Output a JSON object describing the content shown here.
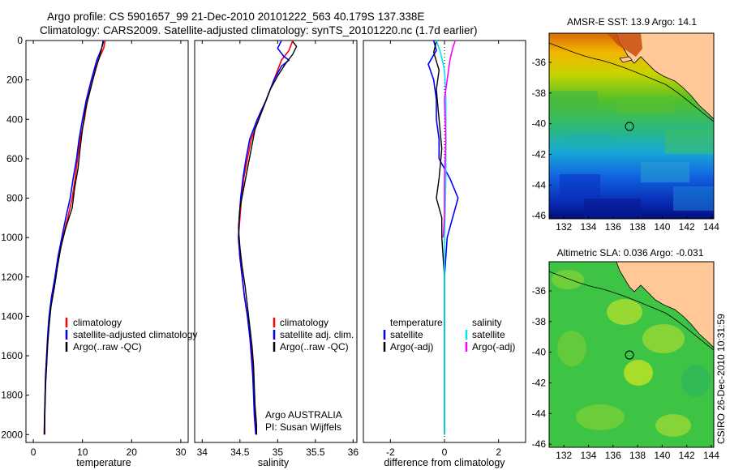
{
  "header": {
    "line1": "Argo profile: CS 5901657_99 21-Dec-2010 20101222_563 40.179S 137.338E",
    "line2": "Climatology: CARS2009. Satellite-adjusted climatology: synTS_20101220.nc (1.7d earlier)"
  },
  "side_text": "CSIRO 26-Dec-2010 10:31:59",
  "colors": {
    "climatology": "#ff0000",
    "satellite": "#0000ff",
    "argo": "#000000",
    "sal_satellite": "#00e5ee",
    "sal_argo": "#ff00ff",
    "land": "#ffc896"
  },
  "chart_data": [
    {
      "type": "line",
      "panel": "temperature",
      "xlabel": "temperature",
      "ylabel": "",
      "xlim": [
        -1.5,
        31.5
      ],
      "ylim": [
        2040,
        0
      ],
      "xticks": [
        0,
        10,
        20,
        30
      ],
      "yticks": [
        0,
        200,
        400,
        600,
        800,
        1000,
        1200,
        1400,
        1600,
        1800,
        2000
      ],
      "legend": {
        "position": "lower-right",
        "entries": [
          "climatology",
          "satellite-adjusted climatology",
          "Argo(..raw -QC)"
        ]
      },
      "series": [
        {
          "name": "climatology",
          "color": "#ff0000",
          "width": 1.6,
          "points": [
            [
              14.6,
              0
            ],
            [
              14.3,
              40
            ],
            [
              13.2,
              100
            ],
            [
              12.1,
              200
            ],
            [
              11.0,
              300
            ],
            [
              10.4,
              400
            ],
            [
              9.5,
              500
            ],
            [
              9.0,
              600
            ],
            [
              8.5,
              700
            ],
            [
              7.9,
              800
            ],
            [
              7.0,
              900
            ],
            [
              6.0,
              1000
            ],
            [
              5.2,
              1100
            ],
            [
              4.5,
              1200
            ],
            [
              3.8,
              1300
            ],
            [
              3.3,
              1400
            ],
            [
              3.0,
              1500
            ],
            [
              2.7,
              1600
            ],
            [
              2.5,
              1700
            ],
            [
              2.4,
              1800
            ],
            [
              2.3,
              1900
            ],
            [
              2.2,
              2000
            ]
          ]
        },
        {
          "name": "satellite-adjusted climatology",
          "color": "#0000ff",
          "width": 1.6,
          "points": [
            [
              14.2,
              0
            ],
            [
              13.9,
              40
            ],
            [
              12.9,
              100
            ],
            [
              11.8,
              200
            ],
            [
              10.8,
              300
            ],
            [
              10.0,
              400
            ],
            [
              9.3,
              500
            ],
            [
              8.8,
              600
            ],
            [
              8.1,
              700
            ],
            [
              7.5,
              800
            ],
            [
              6.6,
              900
            ],
            [
              5.8,
              1000
            ],
            [
              5.0,
              1100
            ],
            [
              4.4,
              1200
            ],
            [
              3.7,
              1300
            ],
            [
              3.2,
              1400
            ],
            [
              2.9,
              1500
            ],
            [
              2.7,
              1600
            ],
            [
              2.5,
              1700
            ],
            [
              2.4,
              1800
            ],
            [
              2.3,
              1900
            ],
            [
              2.3,
              2000
            ]
          ]
        },
        {
          "name": "Argo(..raw -QC)",
          "color": "#000000",
          "width": 1.4,
          "points": [
            [
              14.3,
              5
            ],
            [
              14.0,
              30
            ],
            [
              13.5,
              80
            ],
            [
              12.6,
              150
            ],
            [
              11.6,
              250
            ],
            [
              10.6,
              350
            ],
            [
              10.0,
              450
            ],
            [
              9.5,
              550
            ],
            [
              9.1,
              650
            ],
            [
              8.4,
              750
            ],
            [
              7.9,
              850
            ],
            [
              6.6,
              950
            ],
            [
              5.6,
              1050
            ],
            [
              4.9,
              1150
            ],
            [
              4.3,
              1250
            ],
            [
              3.6,
              1350
            ],
            [
              3.2,
              1450
            ],
            [
              2.9,
              1550
            ],
            [
              2.7,
              1650
            ],
            [
              2.5,
              1750
            ],
            [
              2.4,
              1850
            ],
            [
              2.3,
              1950
            ],
            [
              2.3,
              2000
            ]
          ]
        }
      ]
    },
    {
      "type": "line",
      "panel": "salinity",
      "xlabel": "salinity",
      "ylabel": "",
      "xlim": [
        33.9,
        36.05
      ],
      "ylim": [
        2040,
        0
      ],
      "xticks": [
        34,
        34.5,
        35,
        35.5,
        36
      ],
      "yticks": [],
      "legend": {
        "position": "lower-right",
        "entries": [
          "climatology",
          "satellite adj. clim.",
          "Argo(..raw -QC)"
        ]
      },
      "annotation": [
        "Argo AUSTRALIA",
        "PI: Susan Wijffels"
      ],
      "series": [
        {
          "name": "climatology",
          "color": "#ff0000",
          "width": 1.6,
          "points": [
            [
              35.2,
              0
            ],
            [
              35.15,
              50
            ],
            [
              35.05,
              100
            ],
            [
              35.0,
              150
            ],
            [
              34.95,
              200
            ],
            [
              34.85,
              300
            ],
            [
              34.75,
              400
            ],
            [
              34.65,
              500
            ],
            [
              34.6,
              600
            ],
            [
              34.55,
              700
            ],
            [
              34.52,
              800
            ],
            [
              34.5,
              900
            ],
            [
              34.48,
              1000
            ],
            [
              34.5,
              1100
            ],
            [
              34.53,
              1200
            ],
            [
              34.56,
              1300
            ],
            [
              34.6,
              1400
            ],
            [
              34.63,
              1500
            ],
            [
              34.66,
              1600
            ],
            [
              34.68,
              1700
            ],
            [
              34.69,
              1800
            ],
            [
              34.7,
              1900
            ],
            [
              34.72,
              2000
            ]
          ]
        },
        {
          "name": "satellite adj. clim.",
          "color": "#0000ff",
          "width": 1.6,
          "points": [
            [
              35.05,
              0
            ],
            [
              35.0,
              40
            ],
            [
              35.08,
              80
            ],
            [
              35.15,
              100
            ],
            [
              35.05,
              130
            ],
            [
              34.95,
              200
            ],
            [
              34.85,
              300
            ],
            [
              34.73,
              400
            ],
            [
              34.63,
              500
            ],
            [
              34.58,
              600
            ],
            [
              34.54,
              700
            ],
            [
              34.51,
              800
            ],
            [
              34.49,
              900
            ],
            [
              34.48,
              1000
            ],
            [
              34.5,
              1100
            ],
            [
              34.53,
              1200
            ],
            [
              34.56,
              1300
            ],
            [
              34.6,
              1400
            ],
            [
              34.63,
              1500
            ],
            [
              34.65,
              1600
            ],
            [
              34.67,
              1700
            ],
            [
              34.68,
              1800
            ],
            [
              34.69,
              1900
            ],
            [
              34.71,
              2000
            ]
          ]
        },
        {
          "name": "Argo(..raw -QC)",
          "color": "#000000",
          "width": 1.4,
          "points": [
            [
              35.2,
              5
            ],
            [
              35.25,
              30
            ],
            [
              35.2,
              70
            ],
            [
              35.1,
              120
            ],
            [
              35.0,
              180
            ],
            [
              34.9,
              250
            ],
            [
              34.8,
              350
            ],
            [
              34.7,
              450
            ],
            [
              34.65,
              550
            ],
            [
              34.6,
              650
            ],
            [
              34.55,
              750
            ],
            [
              34.5,
              850
            ],
            [
              34.48,
              950
            ],
            [
              34.5,
              1050
            ],
            [
              34.53,
              1150
            ],
            [
              34.57,
              1250
            ],
            [
              34.6,
              1350
            ],
            [
              34.63,
              1450
            ],
            [
              34.66,
              1550
            ],
            [
              34.68,
              1650
            ],
            [
              34.69,
              1750
            ],
            [
              34.7,
              1850
            ],
            [
              34.72,
              1950
            ],
            [
              34.72,
              2000
            ]
          ]
        }
      ]
    },
    {
      "type": "line",
      "panel": "difference",
      "xlabel": "difference from climatology",
      "ylabel": "",
      "xlim": [
        -3,
        3
      ],
      "ylim": [
        2040,
        0
      ],
      "xticks": [
        -2,
        0,
        2
      ],
      "yticks": [],
      "legend": {
        "position": "lower-center",
        "groups": [
          {
            "title": "temperature",
            "entries": [
              "satellite",
              "Argo(-adj)"
            ]
          },
          {
            "title": "salinity",
            "entries": [
              "satellite",
              "Argo(-adj)"
            ]
          }
        ]
      },
      "series": [
        {
          "name": "temperature satellite",
          "color": "#0000ff",
          "width": 1.6,
          "points": [
            [
              -0.4,
              0
            ],
            [
              -0.3,
              50
            ],
            [
              -0.6,
              120
            ],
            [
              -0.4,
              200
            ],
            [
              -0.3,
              300
            ],
            [
              -0.3,
              400
            ],
            [
              -0.2,
              500
            ],
            [
              -0.2,
              600
            ],
            [
              0.2,
              700
            ],
            [
              0.5,
              800
            ],
            [
              0.3,
              900
            ],
            [
              0.1,
              1000
            ],
            [
              0.0,
              1200
            ],
            [
              0.0,
              1500
            ],
            [
              0.0,
              2000
            ]
          ]
        },
        {
          "name": "temperature Argo(-adj)",
          "color": "#000000",
          "width": 1.4,
          "points": [
            [
              -0.3,
              5
            ],
            [
              -0.4,
              60
            ],
            [
              -0.2,
              150
            ],
            [
              -0.3,
              250
            ],
            [
              -0.2,
              400
            ],
            [
              -0.1,
              550
            ],
            [
              -0.2,
              700
            ],
            [
              -0.3,
              800
            ],
            [
              -0.1,
              900
            ],
            [
              -0.1,
              1000
            ],
            [
              0.0,
              1200
            ],
            [
              0.0,
              2000
            ]
          ]
        },
        {
          "name": "salinity satellite",
          "color": "#00e5ee",
          "width": 1.6,
          "points": [
            [
              -0.3,
              0
            ],
            [
              -0.15,
              60
            ],
            [
              0.0,
              150
            ],
            [
              0.05,
              300
            ],
            [
              0.05,
              500
            ],
            [
              0.05,
              700
            ],
            [
              0.0,
              1000
            ],
            [
              0.0,
              1500
            ],
            [
              0.0,
              2000
            ]
          ]
        },
        {
          "name": "salinity Argo(-adj)",
          "color": "#ff00ff",
          "width": 1.6,
          "points": [
            [
              0.4,
              0
            ],
            [
              0.3,
              40
            ],
            [
              0.2,
              100
            ],
            [
              0.1,
              200
            ],
            [
              0.0,
              300
            ],
            [
              0.05,
              500
            ],
            [
              0.0,
              700
            ],
            [
              0.0,
              900
            ],
            [
              -0.05,
              1000
            ]
          ]
        }
      ]
    },
    {
      "type": "heatmap",
      "panel": "sst-map",
      "title": "AMSR-E SST: 13.9  Argo: 14.1",
      "xticks": [
        132,
        134,
        136,
        138,
        140,
        142,
        144
      ],
      "yticks": [
        -36,
        -38,
        -40,
        -42,
        -44,
        -46
      ],
      "xlim": [
        130.8,
        144.2
      ],
      "ylim": [
        -46.2,
        -34.1
      ],
      "marker": [
        137.338,
        -40.179
      ]
    },
    {
      "type": "heatmap",
      "panel": "sla-map",
      "title": "Altimetric SLA: 0.036  Argo: -0.031",
      "xticks": [
        132,
        134,
        136,
        138,
        140,
        142,
        144
      ],
      "yticks": [
        -36,
        -38,
        -40,
        -42,
        -44,
        -46
      ],
      "xlim": [
        130.8,
        144.2
      ],
      "ylim": [
        -46.2,
        -34.1
      ],
      "marker": [
        137.338,
        -40.179
      ]
    }
  ]
}
